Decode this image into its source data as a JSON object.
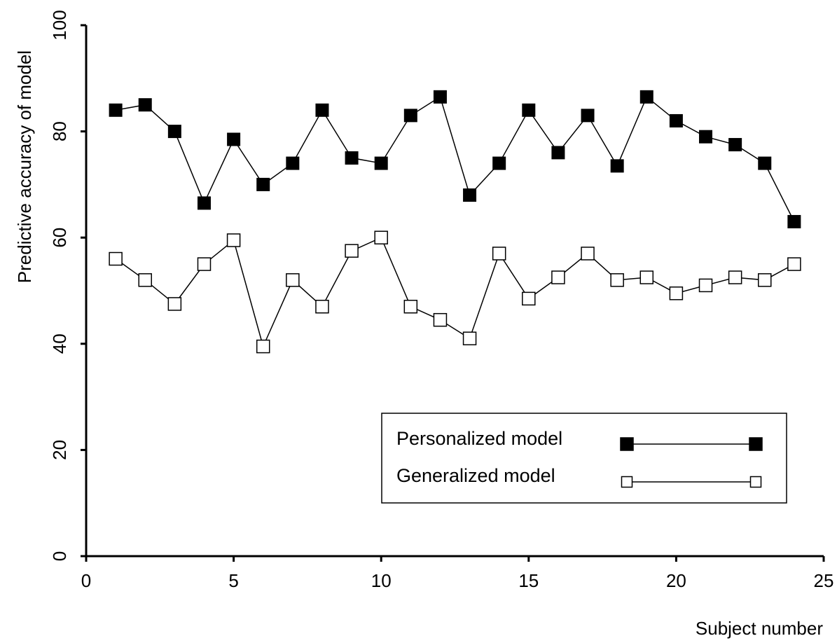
{
  "chart_data": {
    "type": "line",
    "title": "",
    "xlabel": "Subject number",
    "ylabel": "Predictive accuracy of model",
    "xlim": [
      0,
      25
    ],
    "ylim": [
      0,
      100
    ],
    "xticks": [
      0,
      5,
      10,
      15,
      20,
      25
    ],
    "yticks": [
      0,
      20,
      40,
      60,
      80,
      100
    ],
    "grid": false,
    "legend_position": "bottom-right",
    "series": [
      {
        "name": "Personalized model",
        "marker": "filled-square",
        "color": "#000000",
        "x": [
          1,
          2,
          3,
          4,
          5,
          6,
          7,
          8,
          9,
          10,
          11,
          12,
          13,
          14,
          15,
          16,
          17,
          18,
          19,
          20,
          21,
          22,
          23,
          24
        ],
        "y": [
          84,
          85,
          80,
          66.5,
          78.5,
          70,
          74,
          84,
          75,
          74,
          83,
          86.5,
          68,
          74,
          84,
          76,
          83,
          73.5,
          86.5,
          82,
          79,
          77.5,
          74,
          63
        ]
      },
      {
        "name": "Generalized model",
        "marker": "open-square",
        "color": "#000000",
        "x": [
          1,
          2,
          3,
          4,
          5,
          6,
          7,
          8,
          9,
          10,
          11,
          12,
          13,
          14,
          15,
          16,
          17,
          18,
          19,
          20,
          21,
          22,
          23,
          24
        ],
        "y": [
          56,
          52,
          47.5,
          55,
          59.5,
          39.5,
          52,
          47,
          57.5,
          60,
          47,
          44.5,
          41,
          57,
          48.5,
          52.5,
          57,
          52,
          52.5,
          49.5,
          51,
          52.5,
          52,
          55
        ]
      }
    ]
  }
}
